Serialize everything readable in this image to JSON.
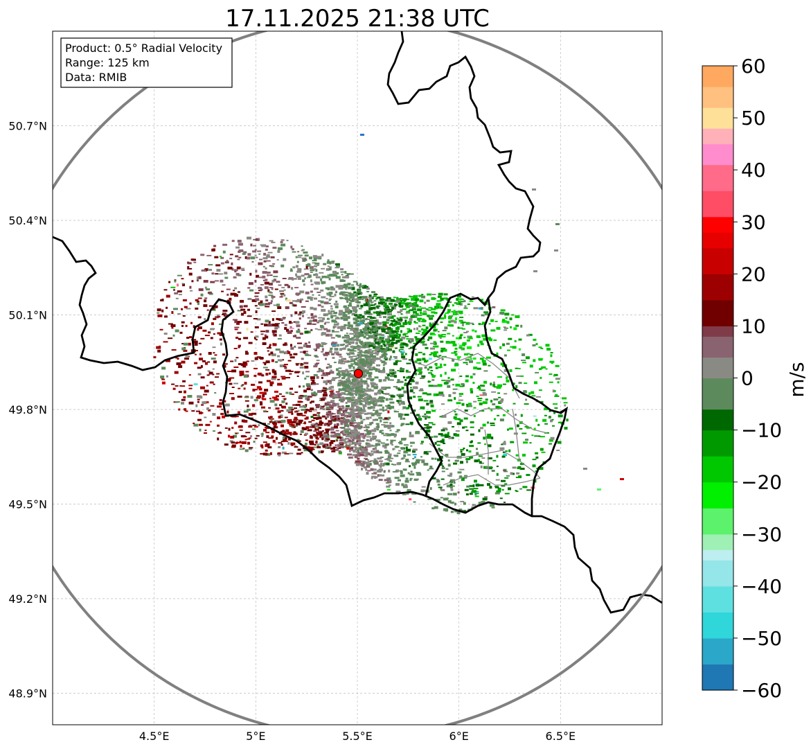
{
  "title": "17.11.2025 21:38 UTC",
  "info_box": {
    "product": "Product: 0.5° Radial Velocity",
    "range": "Range: 125 km",
    "data": "Data: RMIB"
  },
  "colorbar": {
    "label": "m/s",
    "min": -60,
    "max": 60,
    "ticks": [
      60,
      50,
      40,
      30,
      20,
      10,
      0,
      -10,
      -20,
      -30,
      -40,
      -50,
      -60
    ],
    "tick_labels": [
      "60",
      "50",
      "40",
      "30",
      "20",
      "10",
      "0",
      "−10",
      "−20",
      "−30",
      "−40",
      "−50",
      "−60"
    ],
    "stops": [
      {
        "v": -60,
        "color": "#1f77b4"
      },
      {
        "v": -55,
        "color": "#2aa7c9"
      },
      {
        "v": -50,
        "color": "#2fd6da"
      },
      {
        "v": -45,
        "color": "#5ee0e0"
      },
      {
        "v": -40,
        "color": "#95e6e8"
      },
      {
        "v": -35,
        "color": "#bdeef0"
      },
      {
        "v": -33,
        "color": "#9ef0b4"
      },
      {
        "v": -30,
        "color": "#5cf26c"
      },
      {
        "v": -25,
        "color": "#00f000"
      },
      {
        "v": -20,
        "color": "#00c800"
      },
      {
        "v": -15,
        "color": "#009a00"
      },
      {
        "v": -10,
        "color": "#006800"
      },
      {
        "v": -6,
        "color": "#5d8a5d"
      },
      {
        "v": 0,
        "color": "#8a8a84"
      },
      {
        "v": 4,
        "color": "#8a6370"
      },
      {
        "v": 8,
        "color": "#7f3c48"
      },
      {
        "v": 10,
        "color": "#700000"
      },
      {
        "v": 15,
        "color": "#9c0000"
      },
      {
        "v": 20,
        "color": "#c80000"
      },
      {
        "v": 25,
        "color": "#e60000"
      },
      {
        "v": 28,
        "color": "#ff0000"
      },
      {
        "v": 31,
        "color": "#ff4d66"
      },
      {
        "v": 36,
        "color": "#ff6b88"
      },
      {
        "v": 41,
        "color": "#ff8ccc"
      },
      {
        "v": 45,
        "color": "#ffb0b8"
      },
      {
        "v": 48,
        "color": "#ffe099"
      },
      {
        "v": 52,
        "color": "#ffc080"
      },
      {
        "v": 56,
        "color": "#ffa860"
      },
      {
        "v": 60,
        "color": "#ff9a50"
      }
    ]
  },
  "map": {
    "lon_range": [
      4.0,
      7.0
    ],
    "lat_range": [
      48.8,
      51.0
    ],
    "lon_ticks": [
      4.5,
      5.0,
      5.5,
      6.0,
      6.5
    ],
    "lon_tick_labels": [
      "4.5°E",
      "5°E",
      "5.5°E",
      "6°E",
      "6.5°E"
    ],
    "lat_ticks": [
      50.7,
      50.4,
      50.1,
      49.8,
      49.5,
      49.2,
      48.9
    ],
    "lat_tick_labels": [
      "50.7°N",
      "50.4°N",
      "50.1°N",
      "49.8°N",
      "49.5°N",
      "49.2°N",
      "48.9°N"
    ],
    "radar_site": {
      "lon": 5.505,
      "lat": 49.914,
      "color": "#ff0000"
    },
    "range_ring_km": 125
  },
  "colors": {
    "border": "#000000",
    "range_ring": "#808080",
    "grid": "#bbbbbb",
    "lux_cantons": "#888888"
  }
}
